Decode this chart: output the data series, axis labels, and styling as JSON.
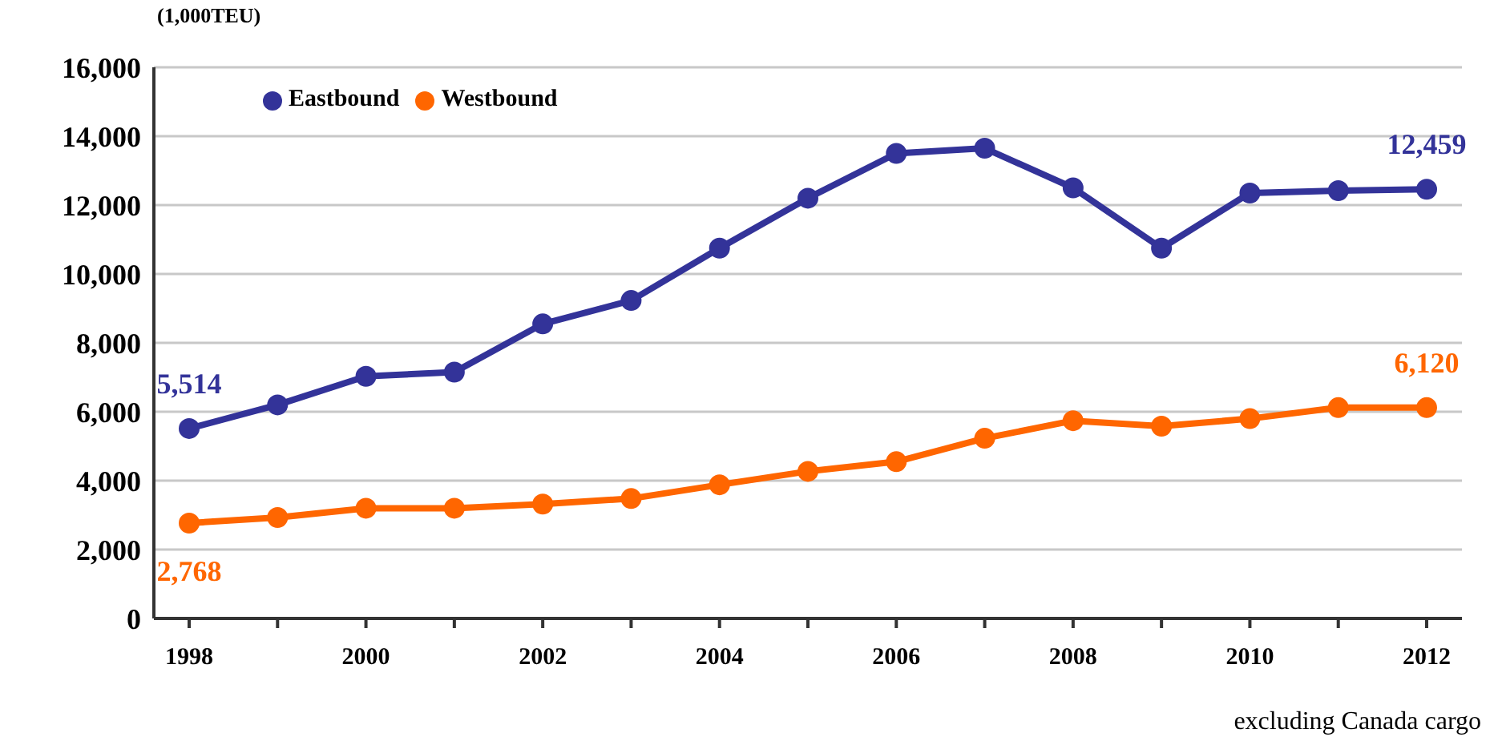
{
  "chart_data": {
    "type": "line",
    "ylabel": "(1,000TEU)",
    "categories": [
      "1998",
      null,
      "2000",
      null,
      "2002",
      null,
      "2004",
      null,
      "2006",
      null,
      "2008",
      null,
      "2010",
      null,
      "2012"
    ],
    "series": [
      {
        "name": "Eastbound",
        "color": "#333399",
        "values": [
          5514,
          6200,
          7030,
          7150,
          8550,
          9230,
          10750,
          12200,
          13500,
          13650,
          12500,
          10750,
          12350,
          12420,
          12459
        ],
        "value_labels": [
          "5,514",
          null,
          null,
          null,
          null,
          null,
          null,
          null,
          null,
          null,
          null,
          null,
          null,
          null,
          "12,459"
        ]
      },
      {
        "name": "Westbound",
        "color": "#ff6600",
        "values": [
          2768,
          2930,
          3200,
          3200,
          3320,
          3480,
          3880,
          4270,
          4550,
          5230,
          5740,
          5580,
          5800,
          6120,
          6120
        ],
        "value_labels": [
          "2,768",
          null,
          null,
          null,
          null,
          null,
          null,
          null,
          null,
          null,
          null,
          null,
          null,
          null,
          "6,120"
        ]
      }
    ],
    "ylim": [
      0,
      16000
    ],
    "yticks": [
      {
        "value": 0,
        "label": "0"
      },
      {
        "value": 2000,
        "label": "2,000"
      },
      {
        "value": 4000,
        "label": "4,000"
      },
      {
        "value": 6000,
        "label": "6,000"
      },
      {
        "value": 8000,
        "label": "8,000"
      },
      {
        "value": 10000,
        "label": "10,000"
      },
      {
        "value": 12000,
        "label": "12,000"
      },
      {
        "value": 14000,
        "label": "14,000"
      },
      {
        "value": 16000,
        "label": "16,000"
      }
    ],
    "grid": "y",
    "legend": "top left",
    "marker": "circle",
    "line_style": "solid",
    "annotations": [
      "excluding Canada cargo"
    ]
  }
}
